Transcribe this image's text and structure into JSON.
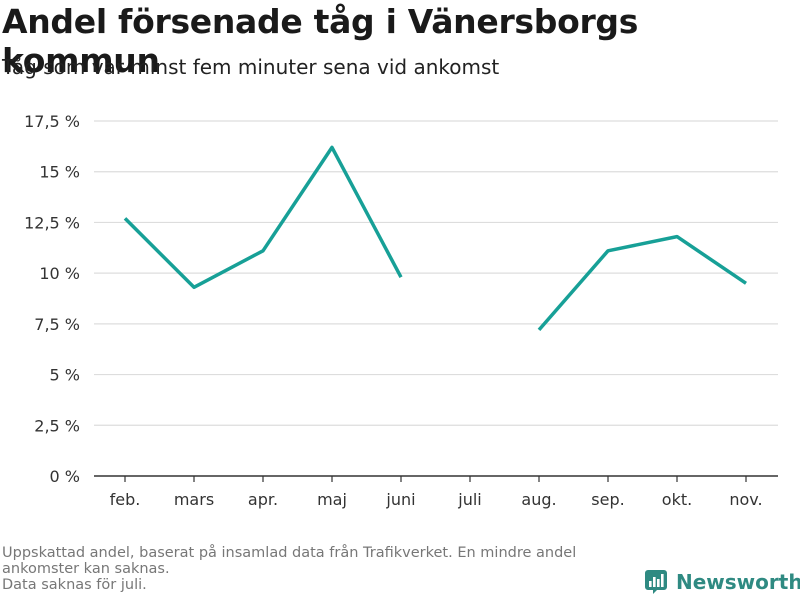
{
  "header": {
    "title": "Andel försenade tåg i Vänersborgs kommun",
    "subtitle": "Tåg som var minst fem minuter sena vid ankomst"
  },
  "chart_data": {
    "type": "line",
    "categories": [
      "feb.",
      "mars",
      "apr.",
      "maj",
      "juni",
      "juli",
      "aug.",
      "sep.",
      "okt.",
      "nov."
    ],
    "series": [
      {
        "values": [
          12.7,
          9.3,
          11.1,
          16.2,
          9.8,
          null,
          7.2,
          11.1,
          11.8,
          9.5
        ],
        "color": "#17a097"
      }
    ],
    "y_ticks": [
      0,
      2.5,
      5,
      7.5,
      10,
      12.5,
      15,
      17.5
    ],
    "y_tick_labels": [
      "0 %",
      "2,5 %",
      "5 %",
      "7,5 %",
      "10 %",
      "12,5 %",
      "15 %",
      "17,5 %"
    ],
    "ylim": [
      0,
      17.5
    ],
    "grid": true,
    "legend": "none"
  },
  "footnote": {
    "line1": "Uppskattad andel, baserat på insamlad data från Trafikverket. En mindre andel ankomster kan saknas.",
    "line2": "Data saknas för juli."
  },
  "brand": {
    "name": "Newsworthy",
    "icon": "newsworthy-logo-icon",
    "color": "#2f8a82"
  }
}
